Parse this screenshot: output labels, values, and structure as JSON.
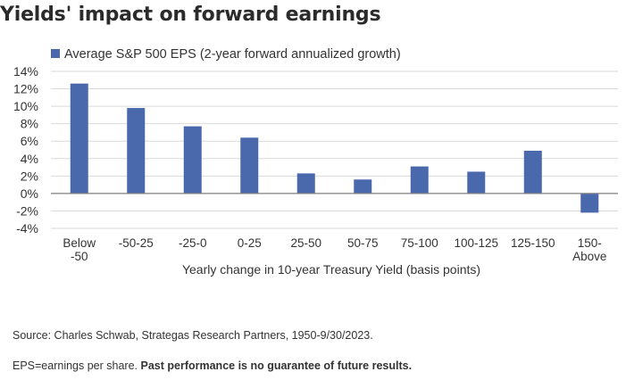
{
  "title": "Yields' impact on forward earnings",
  "source": "Source: Charles Schwab, Strategas Research Partners, 1950-9/30/2023.",
  "note": {
    "prefix": "EPS=earnings per share. ",
    "bold": "Past performance is no guarantee of future results."
  },
  "colors": {
    "bar": "#4a69ad",
    "grid": "#d9d9d9",
    "axis": "#7f7f7f"
  },
  "chart_data": {
    "type": "bar",
    "categories": [
      "Below -50",
      "-50-25",
      "-25-0",
      "0-25",
      "25-50",
      "50-75",
      "75-100",
      "100-125",
      "125-150",
      "150-Above"
    ],
    "category_lines": [
      [
        "Below",
        "-50"
      ],
      [
        "-50-25"
      ],
      [
        "-25-0"
      ],
      [
        "0-25"
      ],
      [
        "25-50"
      ],
      [
        "50-75"
      ],
      [
        "75-100"
      ],
      [
        "100-125"
      ],
      [
        "125-150"
      ],
      [
        "150-",
        "Above"
      ]
    ],
    "series": [
      {
        "name": "Average S&P 500 EPS (2-year forward annualized growth)",
        "values": [
          12.6,
          9.8,
          7.7,
          6.4,
          2.3,
          1.6,
          3.1,
          2.5,
          4.9,
          -2.2
        ]
      }
    ],
    "xlabel": "Yearly change in 10-year Treasury Yield (basis points)",
    "ylabel": "",
    "ylim": [
      -4,
      14
    ],
    "yticks": [
      14,
      12,
      10,
      8,
      6,
      4,
      2,
      0,
      -2,
      -4
    ],
    "ytick_labels": [
      "14%",
      "12%",
      "10%",
      "8%",
      "6%",
      "4%",
      "2%",
      "0%",
      "-2%",
      "-4%"
    ],
    "grid": true,
    "legend_position": "top-left"
  }
}
